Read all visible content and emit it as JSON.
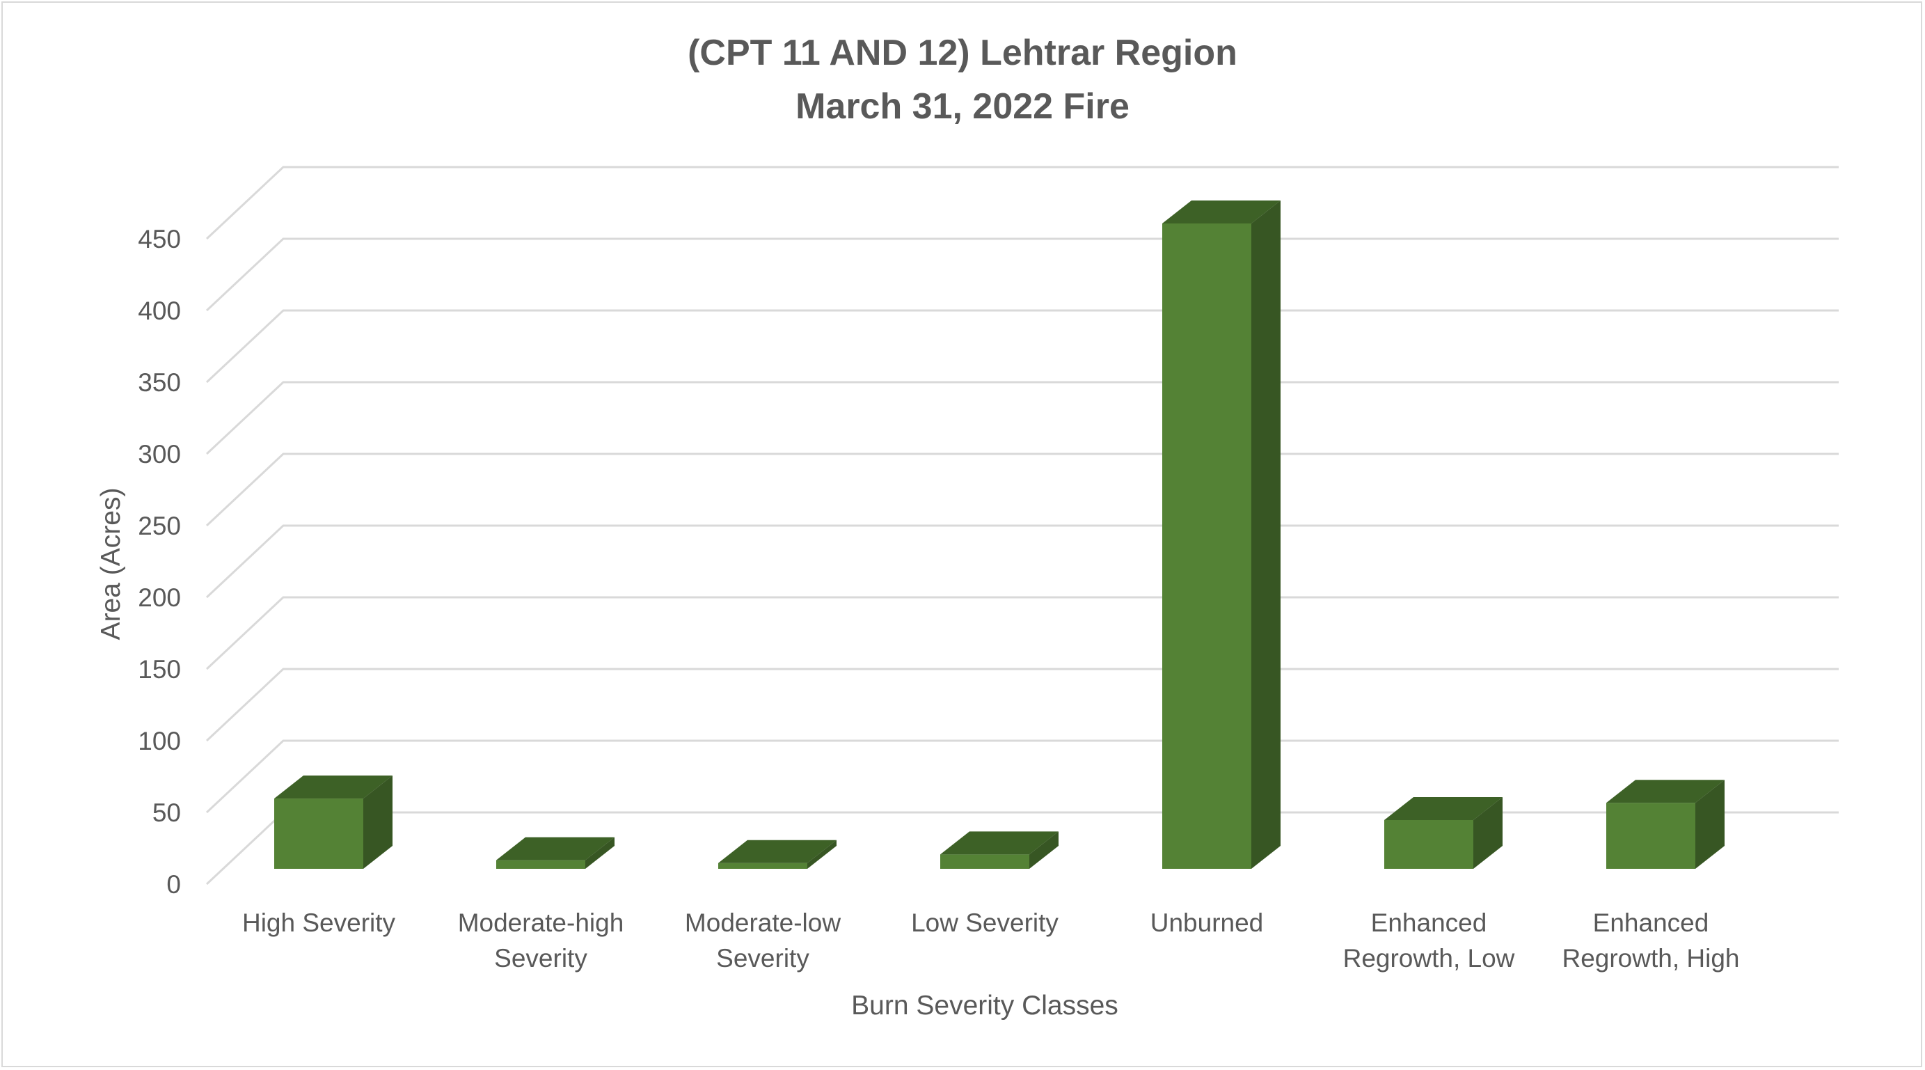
{
  "chart_data": {
    "type": "bar",
    "title": [
      "(CPT 11 AND 12) Lehtrar Region",
      "March 31, 2022 Fire"
    ],
    "xlabel": "Burn Severity Classes",
    "ylabel": "Area (Acres)",
    "ylim": [
      0,
      450
    ],
    "yticks": [
      0,
      50,
      100,
      150,
      200,
      250,
      300,
      350,
      400,
      450
    ],
    "categories": [
      [
        "High Severity"
      ],
      [
        "Moderate-high",
        "Severity"
      ],
      [
        "Moderate-low",
        "Severity"
      ],
      [
        "Low Severity"
      ],
      [
        "Unburned"
      ],
      [
        "Enhanced",
        "Regrowth, Low"
      ],
      [
        "Enhanced",
        "Regrowth, High"
      ]
    ],
    "values": [
      49,
      6,
      4,
      10,
      450,
      34,
      46
    ],
    "grid": true,
    "legend": "none",
    "bar_color": "#548235",
    "bar_top_color": "#3d6126",
    "bar_side_color": "#375623",
    "grid_color": "#d9d9d9",
    "text_color": "#595959"
  }
}
